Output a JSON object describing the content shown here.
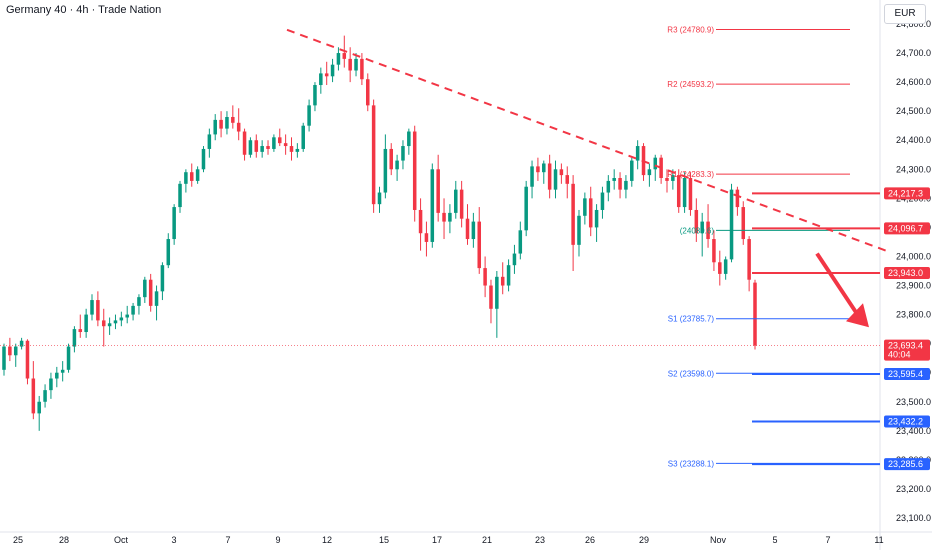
{
  "header": {
    "title": "Germany 40 · 4h · Trade Nation",
    "currency_button": "EUR"
  },
  "colors": {
    "up": "#089981",
    "down": "#f23645",
    "pivot_red": "#f23645",
    "support_blue": "#2962ff",
    "trend": "#f23645"
  },
  "chart_data": {
    "type": "candlestick",
    "title": "Germany 40 · 4h · Trade Nation",
    "y_ticks": [
      "24,800.0",
      "24,700.0",
      "24,600.0",
      "24,500.0",
      "24,400.0",
      "24,300.0",
      "24,200.0",
      "24,100.0",
      "24,000.0",
      "23,900.0",
      "23,800.0",
      "23,700.0",
      "23,600.0",
      "23,500.0",
      "23,400.0",
      "23,300.0",
      "23,200.0",
      "23,100.0"
    ],
    "y_tick_values": [
      24800,
      24700,
      24600,
      24500,
      24400,
      24300,
      24200,
      24100,
      24000,
      23900,
      23800,
      23700,
      23600,
      23500,
      23400,
      23300,
      23200,
      23100
    ],
    "ylim": [
      23040,
      24840
    ],
    "x_ticks": [
      "25",
      "28",
      "Oct",
      "3",
      "7",
      "9",
      "12",
      "15",
      "17",
      "21",
      "23",
      "26",
      "29",
      "Nov",
      "5",
      "7",
      "11"
    ],
    "pivots": [
      {
        "label": "R3 (24780.9)",
        "value": 24780.9,
        "color": "#f23645"
      },
      {
        "label": "R2 (24593.2)",
        "value": 24593.2,
        "color": "#f23645"
      },
      {
        "label": "R1 (24283.3)",
        "value": 24283.3,
        "color": "#f23645"
      },
      {
        "label": "(24089.6)",
        "value": 24089.6,
        "color": "#089981"
      },
      {
        "label": "S1 (23785.7)",
        "value": 23785.7,
        "color": "#2962ff"
      },
      {
        "label": "S2 (23598.0)",
        "value": 23598.0,
        "color": "#2962ff"
      },
      {
        "label": "S3 (23288.1)",
        "value": 23288.1,
        "color": "#2962ff"
      }
    ],
    "horizontal_levels": [
      {
        "value": 24217.3,
        "label": "24,217.3",
        "color": "#f23645"
      },
      {
        "value": 24096.7,
        "label": "24,096.7",
        "color": "#f23645"
      },
      {
        "value": 23943.0,
        "label": "23,943.0",
        "color": "#f23645"
      },
      {
        "value": 23595.4,
        "label": "23,595.4",
        "color": "#2962ff"
      },
      {
        "value": 23432.2,
        "label": "23,432.2",
        "color": "#2962ff"
      },
      {
        "value": 23285.6,
        "label": "23,285.6",
        "color": "#2962ff"
      }
    ],
    "current_price": {
      "value": 23693.4,
      "label": "23,693.4",
      "countdown": "40:04"
    },
    "trendline": {
      "from": {
        "date": "Oct 9",
        "price": 24780
      },
      "to": {
        "date": "Nov 11",
        "price": 24020
      }
    },
    "forecast_arrow": {
      "direction": "down",
      "from_price": 24010,
      "to_price": 23770
    },
    "candles": [
      [
        23610,
        23700,
        23590,
        23690
      ],
      [
        23690,
        23720,
        23640,
        23660
      ],
      [
        23660,
        23700,
        23620,
        23690
      ],
      [
        23690,
        23720,
        23680,
        23710
      ],
      [
        23710,
        23715,
        23560,
        23580
      ],
      [
        23580,
        23640,
        23440,
        23460
      ],
      [
        23460,
        23520,
        23400,
        23500
      ],
      [
        23500,
        23560,
        23480,
        23540
      ],
      [
        23540,
        23600,
        23510,
        23580
      ],
      [
        23580,
        23620,
        23550,
        23600
      ],
      [
        23600,
        23640,
        23570,
        23610
      ],
      [
        23610,
        23700,
        23600,
        23690
      ],
      [
        23690,
        23760,
        23670,
        23750
      ],
      [
        23750,
        23800,
        23720,
        23740
      ],
      [
        23740,
        23820,
        23720,
        23800
      ],
      [
        23800,
        23870,
        23780,
        23850
      ],
      [
        23850,
        23880,
        23760,
        23780
      ],
      [
        23780,
        23820,
        23690,
        23760
      ],
      [
        23760,
        23790,
        23730,
        23770
      ],
      [
        23770,
        23800,
        23750,
        23780
      ],
      [
        23780,
        23810,
        23760,
        23790
      ],
      [
        23790,
        23830,
        23770,
        23800
      ],
      [
        23800,
        23840,
        23780,
        23830
      ],
      [
        23830,
        23870,
        23800,
        23860
      ],
      [
        23860,
        23930,
        23840,
        23920
      ],
      [
        23920,
        23940,
        23810,
        23830
      ],
      [
        23830,
        23900,
        23780,
        23880
      ],
      [
        23880,
        23980,
        23850,
        23970
      ],
      [
        23970,
        24080,
        23960,
        24060
      ],
      [
        24060,
        24180,
        24040,
        24170
      ],
      [
        24170,
        24260,
        24150,
        24250
      ],
      [
        24250,
        24300,
        24220,
        24290
      ],
      [
        24290,
        24320,
        24240,
        24260
      ],
      [
        24260,
        24310,
        24250,
        24300
      ],
      [
        24300,
        24380,
        24290,
        24370
      ],
      [
        24370,
        24440,
        24340,
        24420
      ],
      [
        24420,
        24490,
        24400,
        24470
      ],
      [
        24470,
        24500,
        24410,
        24440
      ],
      [
        24440,
        24500,
        24420,
        24480
      ],
      [
        24480,
        24520,
        24440,
        24460
      ],
      [
        24460,
        24510,
        24400,
        24430
      ],
      [
        24430,
        24440,
        24330,
        24350
      ],
      [
        24350,
        24410,
        24340,
        24400
      ],
      [
        24400,
        24420,
        24340,
        24360
      ],
      [
        24360,
        24400,
        24340,
        24380
      ],
      [
        24380,
        24400,
        24350,
        24370
      ],
      [
        24370,
        24420,
        24360,
        24410
      ],
      [
        24410,
        24440,
        24380,
        24390
      ],
      [
        24390,
        24420,
        24350,
        24380
      ],
      [
        24380,
        24410,
        24330,
        24360
      ],
      [
        24360,
        24390,
        24340,
        24370
      ],
      [
        24370,
        24460,
        24360,
        24450
      ],
      [
        24450,
        24540,
        24430,
        24520
      ],
      [
        24520,
        24600,
        24500,
        24590
      ],
      [
        24590,
        24650,
        24560,
        24630
      ],
      [
        24630,
        24670,
        24590,
        24620
      ],
      [
        24620,
        24680,
        24600,
        24660
      ],
      [
        24660,
        24720,
        24640,
        24700
      ],
      [
        24700,
        24760,
        24650,
        24680
      ],
      [
        24680,
        24720,
        24600,
        24640
      ],
      [
        24640,
        24700,
        24620,
        24680
      ],
      [
        24680,
        24700,
        24590,
        24610
      ],
      [
        24610,
        24630,
        24500,
        24520
      ],
      [
        24520,
        24540,
        24150,
        24180
      ],
      [
        24180,
        24240,
        24150,
        24220
      ],
      [
        24220,
        24420,
        24200,
        24370
      ],
      [
        24370,
        24390,
        24280,
        24300
      ],
      [
        24300,
        24350,
        24260,
        24330
      ],
      [
        24330,
        24400,
        24300,
        24380
      ],
      [
        24380,
        24440,
        24350,
        24430
      ],
      [
        24430,
        24450,
        24120,
        24160
      ],
      [
        24160,
        24200,
        24020,
        24080
      ],
      [
        24080,
        24120,
        24000,
        24050
      ],
      [
        24050,
        24320,
        24030,
        24300
      ],
      [
        24300,
        24350,
        24120,
        24150
      ],
      [
        24150,
        24200,
        24060,
        24120
      ],
      [
        24120,
        24180,
        24080,
        24150
      ],
      [
        24150,
        24260,
        24130,
        24230
      ],
      [
        24230,
        24260,
        24100,
        24130
      ],
      [
        24130,
        24180,
        24040,
        24060
      ],
      [
        24060,
        24150,
        24030,
        24120
      ],
      [
        24120,
        24170,
        23940,
        23960
      ],
      [
        23960,
        24000,
        23860,
        23900
      ],
      [
        23900,
        23920,
        23770,
        23820
      ],
      [
        23820,
        23950,
        23720,
        23930
      ],
      [
        23930,
        23980,
        23870,
        23900
      ],
      [
        23900,
        23990,
        23880,
        23970
      ],
      [
        23970,
        24040,
        23940,
        24010
      ],
      [
        24010,
        24120,
        23990,
        24090
      ],
      [
        24090,
        24260,
        24070,
        24240
      ],
      [
        24240,
        24330,
        24200,
        24310
      ],
      [
        24310,
        24340,
        24260,
        24290
      ],
      [
        24290,
        24330,
        24250,
        24320
      ],
      [
        24320,
        24350,
        24200,
        24230
      ],
      [
        24230,
        24330,
        24200,
        24300
      ],
      [
        24300,
        24320,
        24250,
        24280
      ],
      [
        24280,
        24310,
        24200,
        24250
      ],
      [
        24250,
        24280,
        23950,
        24040
      ],
      [
        24040,
        24160,
        24000,
        24140
      ],
      [
        24140,
        24220,
        24110,
        24200
      ],
      [
        24200,
        24240,
        24070,
        24100
      ],
      [
        24100,
        24180,
        24050,
        24160
      ],
      [
        24160,
        24240,
        24130,
        24220
      ],
      [
        24220,
        24280,
        24190,
        24260
      ],
      [
        24260,
        24300,
        24230,
        24270
      ],
      [
        24270,
        24290,
        24200,
        24230
      ],
      [
        24230,
        24280,
        24200,
        24260
      ],
      [
        24260,
        24340,
        24240,
        24330
      ],
      [
        24330,
        24400,
        24300,
        24380
      ],
      [
        24380,
        24390,
        24260,
        24280
      ],
      [
        24280,
        24320,
        24240,
        24300
      ],
      [
        24300,
        24350,
        24260,
        24340
      ],
      [
        24340,
        24350,
        24250,
        24270
      ],
      [
        24270,
        24300,
        24220,
        24260
      ],
      [
        24260,
        24300,
        24230,
        24280
      ],
      [
        24280,
        24300,
        24150,
        24170
      ],
      [
        24170,
        24290,
        24150,
        24270
      ],
      [
        24270,
        24290,
        24140,
        24160
      ],
      [
        24160,
        24200,
        24050,
        24080
      ],
      [
        24080,
        24150,
        24000,
        24120
      ],
      [
        24120,
        24180,
        24030,
        24060
      ],
      [
        24060,
        24090,
        23950,
        23980
      ],
      [
        23980,
        24020,
        23900,
        23940
      ],
      [
        23940,
        24000,
        23920,
        23990
      ],
      [
        23990,
        24250,
        23980,
        24230
      ],
      [
        24230,
        24240,
        24140,
        24170
      ],
      [
        24170,
        24190,
        24040,
        24060
      ],
      [
        24060,
        24070,
        23880,
        23920
      ],
      [
        23910,
        23920,
        23680,
        23693.4
      ]
    ]
  }
}
